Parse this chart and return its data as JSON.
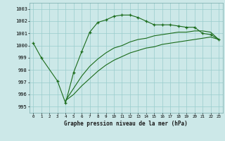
{
  "title": "Graphe pression niveau de la mer (hPa)",
  "bg_color": "#cce8e8",
  "grid_color": "#99cccc",
  "line_color": "#1a6b1a",
  "marker": "+",
  "xlim": [
    -0.5,
    23.5
  ],
  "ylim": [
    994.5,
    1003.5
  ],
  "yticks": [
    995,
    996,
    997,
    998,
    999,
    1000,
    1001,
    1002,
    1003
  ],
  "xticks": [
    0,
    1,
    2,
    3,
    4,
    5,
    6,
    7,
    8,
    9,
    10,
    11,
    12,
    13,
    14,
    15,
    16,
    17,
    18,
    19,
    20,
    21,
    22,
    23
  ],
  "line1_x": [
    0,
    1,
    3,
    4,
    5,
    6,
    7,
    8,
    9,
    10,
    11,
    12,
    13,
    14,
    15,
    16,
    17,
    18,
    19,
    20,
    21,
    22,
    23
  ],
  "line1_y": [
    1000.2,
    999.0,
    997.1,
    995.3,
    997.8,
    999.5,
    1001.1,
    1001.9,
    1002.1,
    1002.4,
    1002.5,
    1002.5,
    1002.3,
    1002.0,
    1001.7,
    1001.7,
    1001.7,
    1001.6,
    1001.5,
    1001.5,
    1001.0,
    1000.9,
    1000.5
  ],
  "line2_x": [
    4,
    5,
    6,
    7,
    8,
    9,
    10,
    11,
    12,
    13,
    14,
    15,
    16,
    17,
    18,
    19,
    20,
    21,
    22,
    23
  ],
  "line2_y": [
    995.5,
    996.5,
    997.5,
    998.3,
    998.9,
    999.4,
    999.8,
    1000.0,
    1000.3,
    1000.5,
    1000.6,
    1000.8,
    1000.9,
    1001.0,
    1001.1,
    1001.1,
    1001.2,
    1001.2,
    1001.1,
    1000.5
  ],
  "line3_x": [
    4,
    5,
    6,
    7,
    8,
    9,
    10,
    11,
    12,
    13,
    14,
    15,
    16,
    17,
    18,
    19,
    20,
    21,
    22,
    23
  ],
  "line3_y": [
    995.5,
    996.0,
    996.7,
    997.3,
    997.9,
    998.4,
    998.8,
    999.1,
    999.4,
    999.6,
    999.8,
    999.9,
    1000.1,
    1000.2,
    1000.3,
    1000.4,
    1000.5,
    1000.6,
    1000.7,
    1000.5
  ],
  "xlabel_fontsize": 5.5,
  "ytick_fontsize": 5.0,
  "xtick_fontsize": 4.2
}
